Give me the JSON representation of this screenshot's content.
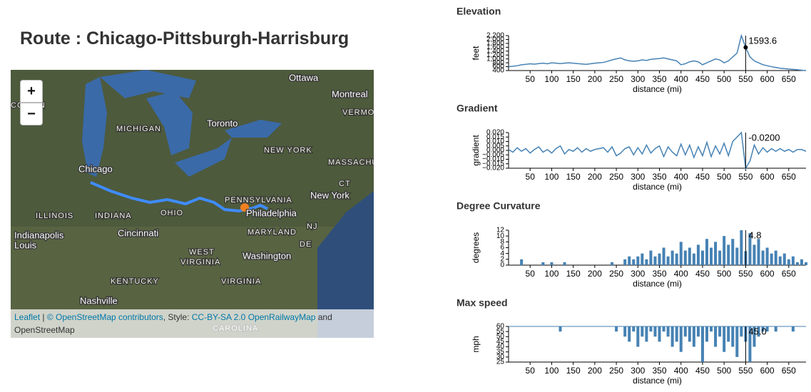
{
  "header": {
    "title": "Route : Chicago-Pittsburgh-Harrisburg"
  },
  "map": {
    "zoom_in": "+",
    "zoom_out": "−",
    "labels": [
      "Ottawa",
      "Montreal",
      "VERMONT",
      "CONSIN",
      "MICHIGAN",
      "Toronto",
      "NEW YORK",
      "MASSACHU",
      "Chicago",
      "CT",
      "PENNSYLVANIA",
      "New York",
      "ILLINOIS",
      "INDIANA",
      "OHIO",
      "Philadelphia",
      "Indianapolis",
      "Cincinnati",
      "MARYLAND",
      "NJ",
      "Louis",
      "WEST",
      "VIRGINIA",
      "Washington",
      "DE",
      "KENTUCKY",
      "VIRGINIA",
      "Nashville",
      "CAROLINA"
    ],
    "attribution": {
      "leaflet": "Leaflet",
      "sep": " | ",
      "osm": "© OpenStreetMap contributors",
      "style": ", Style: ",
      "license": "CC-BY-SA 2.0",
      "orm": "OpenRailwayMap",
      "tail": " and OpenStreetMap"
    }
  },
  "chart_data": [
    {
      "type": "line",
      "title": "Elevation",
      "x_label": "distance (mi)",
      "y_label": "feet",
      "color": "#4682b4",
      "x": [
        0,
        10,
        20,
        30,
        40,
        50,
        60,
        70,
        80,
        90,
        100,
        110,
        120,
        130,
        140,
        150,
        160,
        170,
        180,
        190,
        200,
        210,
        220,
        230,
        240,
        250,
        260,
        270,
        280,
        290,
        300,
        310,
        320,
        330,
        340,
        350,
        360,
        370,
        380,
        390,
        400,
        410,
        420,
        430,
        440,
        450,
        460,
        470,
        480,
        490,
        500,
        510,
        520,
        530,
        540,
        550,
        560,
        570,
        580,
        590,
        600,
        610,
        620,
        630,
        640,
        650,
        660,
        670,
        680,
        690
      ],
      "values": [
        600,
        620,
        650,
        700,
        720,
        750,
        730,
        760,
        780,
        750,
        800,
        780,
        760,
        780,
        800,
        780,
        760,
        740,
        720,
        750,
        780,
        800,
        820,
        880,
        950,
        1000,
        1050,
        950,
        900,
        880,
        900,
        950,
        920,
        980,
        1000,
        1020,
        1050,
        1000,
        950,
        900,
        700,
        750,
        850,
        900,
        850,
        700,
        800,
        900,
        1000,
        950,
        800,
        900,
        1100,
        1300,
        2200,
        1593.6,
        1100,
        900,
        800,
        700,
        650,
        600,
        560,
        520,
        500,
        480,
        460,
        440,
        420,
        400
      ],
      "xlim": [
        0,
        690
      ],
      "xticks": [
        50,
        100,
        150,
        200,
        250,
        300,
        350,
        400,
        450,
        500,
        550,
        600,
        650
      ],
      "ylim": [
        400,
        2200
      ],
      "yticks": [
        400,
        600,
        800,
        {
          "value": 1000,
          "label": "1,000"
        },
        {
          "value": 1200,
          "label": "1,200"
        },
        {
          "value": 1400,
          "label": "1,400"
        },
        {
          "value": 1600,
          "label": "1,600"
        },
        {
          "value": 1800,
          "label": "1,800"
        },
        {
          "value": 2000,
          "label": "2,000"
        },
        {
          "value": 2200,
          "label": "2,200"
        }
      ],
      "hover": {
        "x": 550,
        "value": 1593.6
      }
    },
    {
      "type": "line",
      "title": "Gradient",
      "x_label": "distance (mi)",
      "y_label": "gradient",
      "color": "#4682b4",
      "x": [
        0,
        10,
        20,
        30,
        40,
        50,
        60,
        70,
        80,
        90,
        100,
        110,
        120,
        130,
        140,
        150,
        160,
        170,
        180,
        190,
        200,
        210,
        220,
        230,
        240,
        250,
        260,
        270,
        280,
        290,
        300,
        310,
        320,
        330,
        340,
        350,
        360,
        370,
        380,
        390,
        400,
        410,
        420,
        430,
        440,
        450,
        460,
        470,
        480,
        490,
        500,
        510,
        520,
        530,
        540,
        550,
        560,
        570,
        580,
        590,
        600,
        610,
        620,
        630,
        640,
        650,
        660,
        670,
        680,
        690
      ],
      "values": [
        0.001,
        -0.002,
        0.003,
        -0.001,
        0.002,
        -0.003,
        0.001,
        0.004,
        -0.002,
        0.001,
        -0.003,
        0.002,
        0.005,
        -0.004,
        0.001,
        -0.001,
        0.003,
        -0.002,
        0.002,
        -0.001,
        0.001,
        0.002,
        0.003,
        -0.002,
        0.004,
        -0.006,
        -0.003,
        0.002,
        0.004,
        -0.005,
        0.003,
        -0.004,
        0.006,
        -0.003,
        0.002,
        0.005,
        -0.007,
        0.004,
        -0.002,
        -0.006,
        0.007,
        -0.005,
        0.006,
        -0.008,
        0.004,
        -0.006,
        0.009,
        -0.007,
        0.005,
        -0.004,
        0.008,
        -0.006,
        0.01,
        0.015,
        0.02,
        -0.02,
        -0.012,
        0.006,
        -0.004,
        0.003,
        -0.002,
        0.002,
        -0.001,
        0.002,
        -0.001,
        0.001,
        -0.002,
        0.001,
        0.001,
        -0.001
      ],
      "xlim": [
        0,
        690
      ],
      "xticks": [
        50,
        100,
        150,
        200,
        250,
        300,
        350,
        400,
        450,
        500,
        550,
        600,
        650
      ],
      "ylim": [
        -0.02,
        0.02
      ],
      "yticks": [
        {
          "value": -0.02,
          "label": "−0.020"
        },
        {
          "value": -0.015,
          "label": "−0.015"
        },
        {
          "value": -0.01,
          "label": "−0.010"
        },
        {
          "value": -0.005,
          "label": "−0.005"
        },
        {
          "value": 0,
          "label": "0.000"
        },
        {
          "value": 0.005,
          "label": "0.005"
        },
        {
          "value": 0.01,
          "label": "0.010"
        },
        {
          "value": 0.015,
          "label": "0.015"
        },
        {
          "value": 0.02,
          "label": "0.020"
        }
      ],
      "hover": {
        "x": 550,
        "value": -0.02,
        "label": "-0.0200"
      }
    },
    {
      "type": "bar",
      "title": "Degree Curvature",
      "x_label": "distance (mi)",
      "y_label": "degrees",
      "color": "#4682b4",
      "x": [
        0,
        10,
        20,
        30,
        40,
        50,
        60,
        70,
        80,
        90,
        100,
        110,
        120,
        130,
        140,
        150,
        160,
        170,
        180,
        190,
        200,
        210,
        220,
        230,
        240,
        250,
        260,
        270,
        280,
        290,
        300,
        310,
        320,
        330,
        340,
        350,
        360,
        370,
        380,
        390,
        400,
        410,
        420,
        430,
        440,
        450,
        460,
        470,
        480,
        490,
        500,
        510,
        520,
        530,
        540,
        550,
        560,
        570,
        580,
        590,
        600,
        610,
        620,
        630,
        640,
        650,
        660,
        670,
        680,
        690
      ],
      "values": [
        0,
        0,
        0,
        2,
        0,
        0,
        0,
        0,
        1,
        0,
        1,
        0,
        0,
        1,
        0,
        0,
        0,
        0,
        0,
        0,
        0,
        0,
        0,
        0,
        1,
        0,
        0,
        2,
        3,
        2,
        3,
        4,
        2,
        5,
        3,
        4,
        6,
        3,
        5,
        4,
        8,
        5,
        6,
        4,
        7,
        5,
        9,
        6,
        8,
        5,
        10,
        7,
        9,
        6,
        12,
        4.8,
        11,
        7,
        9,
        5,
        6,
        4,
        5,
        3,
        4,
        2,
        3,
        1,
        2,
        1
      ],
      "xlim": [
        0,
        690
      ],
      "xticks": [
        50,
        100,
        150,
        200,
        250,
        300,
        350,
        400,
        450,
        500,
        550,
        600,
        650
      ],
      "ylim": [
        0,
        12
      ],
      "yticks": [
        0,
        2,
        4,
        6,
        8,
        10,
        12
      ],
      "hover": {
        "x": 550,
        "value": 4.8
      }
    },
    {
      "type": "drop",
      "title": "Max speed",
      "x_label": "distance (mi)",
      "y_label": "mph",
      "color": "#4682b4",
      "x": [
        0,
        10,
        20,
        30,
        40,
        50,
        60,
        70,
        80,
        90,
        100,
        110,
        120,
        130,
        140,
        150,
        160,
        170,
        180,
        190,
        200,
        210,
        220,
        230,
        240,
        250,
        260,
        270,
        280,
        290,
        300,
        310,
        320,
        330,
        340,
        350,
        360,
        370,
        380,
        390,
        400,
        410,
        420,
        430,
        440,
        450,
        460,
        470,
        480,
        490,
        500,
        510,
        520,
        530,
        540,
        550,
        560,
        570,
        580,
        590,
        600,
        610,
        620,
        630,
        640,
        650,
        660,
        670,
        680,
        690
      ],
      "values": [
        60,
        60,
        60,
        60,
        60,
        60,
        60,
        60,
        60,
        60,
        60,
        60,
        55,
        60,
        60,
        60,
        60,
        60,
        60,
        60,
        60,
        60,
        60,
        60,
        60,
        55,
        60,
        50,
        45,
        55,
        40,
        50,
        45,
        55,
        50,
        45,
        55,
        50,
        40,
        45,
        35,
        50,
        45,
        40,
        50,
        25,
        45,
        55,
        40,
        50,
        35,
        45,
        40,
        30,
        50,
        45,
        25,
        40,
        50,
        55,
        55,
        60,
        55,
        60,
        60,
        60,
        55,
        60,
        60,
        60
      ],
      "xlim": [
        0,
        690
      ],
      "xticks": [
        50,
        100,
        150,
        200,
        250,
        300,
        350,
        400,
        450,
        500,
        550,
        600,
        650
      ],
      "ylim": [
        25,
        60
      ],
      "yticks": [
        25,
        30,
        35,
        40,
        45,
        50,
        55,
        60
      ],
      "hover": {
        "x": 550,
        "value": 45,
        "label": "45.0"
      }
    }
  ]
}
